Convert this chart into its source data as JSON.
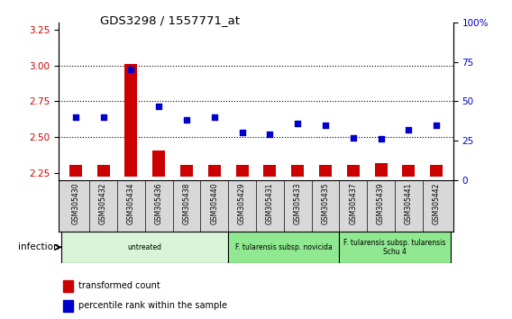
{
  "title": "GDS3298 / 1557771_at",
  "samples": [
    "GSM305430",
    "GSM305432",
    "GSM305434",
    "GSM305436",
    "GSM305438",
    "GSM305440",
    "GSM305429",
    "GSM305431",
    "GSM305433",
    "GSM305435",
    "GSM305437",
    "GSM305439",
    "GSM305441",
    "GSM305442"
  ],
  "red_values": [
    2.307,
    2.307,
    3.01,
    2.41,
    2.307,
    2.307,
    2.307,
    2.307,
    2.307,
    2.307,
    2.307,
    2.32,
    2.307,
    2.307
  ],
  "blue_values": [
    40,
    40,
    70,
    47,
    38,
    40,
    30,
    29,
    36,
    35,
    27,
    26,
    32,
    35
  ],
  "ylim_left": [
    2.2,
    3.3
  ],
  "ylim_right": [
    0,
    100
  ],
  "yticks_left": [
    2.25,
    2.5,
    2.75,
    3.0,
    3.25
  ],
  "yticks_right": [
    0,
    25,
    50,
    75,
    100
  ],
  "group_bounds": [
    {
      "start": 0,
      "end": 6,
      "label": "untreated",
      "color": "#d8f5d8"
    },
    {
      "start": 6,
      "end": 10,
      "label": "F. tularensis subsp. novicida",
      "color": "#90e890"
    },
    {
      "start": 10,
      "end": 14,
      "label": "F. tularensis subsp. tularensis\nSchu 4",
      "color": "#90e890"
    }
  ],
  "infection_label": "infection",
  "red_color": "#cc0000",
  "blue_color": "#0000cc",
  "bar_base": 2.225,
  "bg_color": "#d8d8d8"
}
